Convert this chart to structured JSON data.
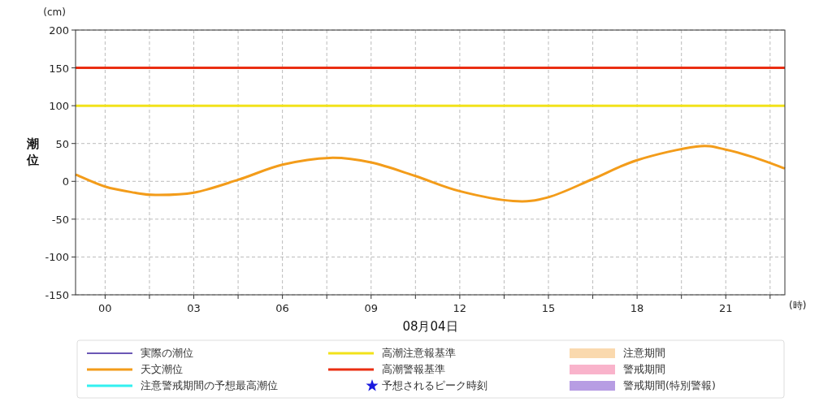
{
  "chart_data": {
    "type": "line",
    "ylabel": "潮位",
    "xlabel": "08月04日",
    "annotations": [
      "(cm)",
      "(時)"
    ],
    "x": [
      -1,
      0,
      1,
      1.7,
      3,
      4.5,
      6,
      7.6,
      9,
      10.5,
      12,
      13.8,
      15,
      16.5,
      18,
      20,
      21,
      22,
      23
    ],
    "xlim": [
      -1,
      23
    ],
    "xticks": [
      {
        "value": 0,
        "label": "00"
      },
      {
        "value": 1.5,
        "label": null
      },
      {
        "value": 3,
        "label": "03"
      },
      {
        "value": 4.5,
        "label": null
      },
      {
        "value": 6,
        "label": "06"
      },
      {
        "value": 7.5,
        "label": null
      },
      {
        "value": 9,
        "label": "09"
      },
      {
        "value": 10.5,
        "label": null
      },
      {
        "value": 12,
        "label": "12"
      },
      {
        "value": 13.5,
        "label": null
      },
      {
        "value": 15,
        "label": "15"
      },
      {
        "value": 16.5,
        "label": null
      },
      {
        "value": 18,
        "label": "18"
      },
      {
        "value": 19.5,
        "label": null
      },
      {
        "value": 21,
        "label": "21"
      },
      {
        "value": 22.5,
        "label": null
      }
    ],
    "ylim": [
      -150,
      200
    ],
    "yticks": [
      -150,
      -100,
      -50,
      0,
      50,
      100,
      150,
      200
    ],
    "grid": true,
    "legend": "bottom",
    "series": [
      {
        "name": "実際の潮位",
        "color": "#3a1f9c",
        "values": [
          null,
          null,
          null,
          null,
          null,
          null,
          null,
          null,
          null,
          null,
          null,
          null,
          null,
          null,
          null,
          null,
          null,
          null,
          null
        ]
      },
      {
        "name": "天文潮位",
        "color": "#f39c1a",
        "values": [
          9,
          -7,
          -15,
          -18,
          -15,
          2,
          22,
          31,
          25,
          7,
          -13,
          -26,
          -21,
          3,
          28,
          46,
          42,
          31,
          17
        ]
      },
      {
        "name": "注意警戒期間の予想最高潮位",
        "color": "#33f0f0",
        "values": [
          null,
          null,
          null,
          null,
          null,
          null,
          null,
          null,
          null,
          null,
          null,
          null,
          null,
          null,
          null,
          null,
          null,
          null,
          null
        ]
      },
      {
        "name": "予想されるピーク時刻",
        "type": "scatter",
        "marker": "star",
        "color": "#1a1adf",
        "values": [
          null,
          null,
          null,
          null,
          null,
          null,
          null,
          null,
          null,
          null,
          null,
          null,
          null,
          null,
          null,
          null,
          null,
          null,
          null
        ]
      },
      {
        "name": "注意期間",
        "type": "area",
        "color": "#fad9ae",
        "values": [
          null,
          null,
          null,
          null,
          null,
          null,
          null,
          null,
          null,
          null,
          null,
          null,
          null,
          null,
          null,
          null,
          null,
          null,
          null
        ]
      },
      {
        "name": "警戒期間",
        "type": "area",
        "color": "#f9b3cb",
        "values": [
          null,
          null,
          null,
          null,
          null,
          null,
          null,
          null,
          null,
          null,
          null,
          null,
          null,
          null,
          null,
          null,
          null,
          null,
          null
        ]
      },
      {
        "name": "警戒期間(特別警報)",
        "type": "area",
        "color": "#b79de3",
        "values": [
          null,
          null,
          null,
          null,
          null,
          null,
          null,
          null,
          null,
          null,
          null,
          null,
          null,
          null,
          null,
          null,
          null,
          null,
          null
        ]
      }
    ],
    "ref_lines": [
      {
        "axis": "y",
        "value": 100,
        "label": "高潮注意報基準",
        "color": "#f2e21a"
      },
      {
        "axis": "y",
        "value": 150,
        "label": "高潮警報基準",
        "color": "#ea2e12"
      }
    ]
  }
}
